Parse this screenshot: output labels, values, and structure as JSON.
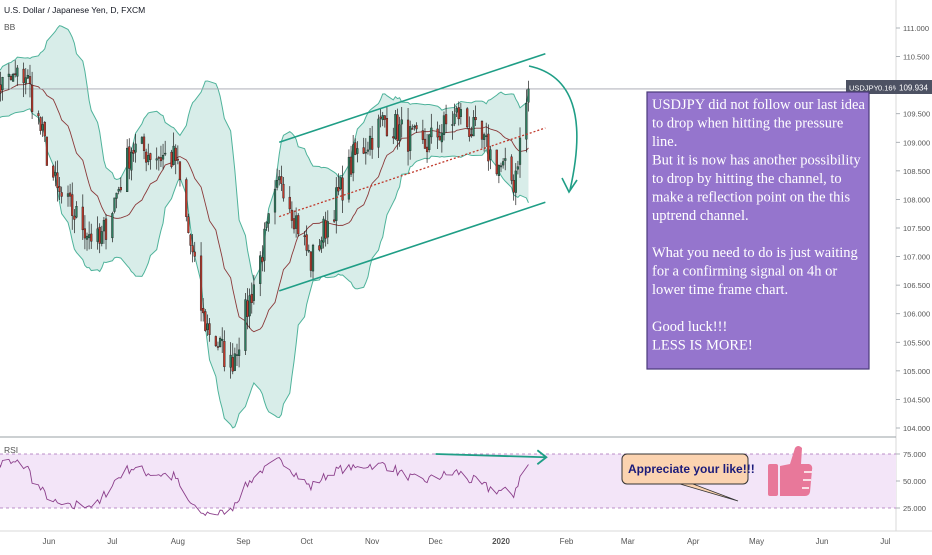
{
  "header": {
    "symbol_title": "U.S. Dollar / Japanese Yen, D, FXCM",
    "indicator_bb": "BB",
    "indicator_rsi": "RSI"
  },
  "price_badge": {
    "symbol": "USDJPY",
    "change": "0.16%",
    "price": "109.934"
  },
  "note": {
    "lines": [
      "USDJPY did not follow our last idea",
      "to drop when hitting the pressure",
      "line.",
      "But it is now has another possibility",
      "to drop by hitting the channel, to",
      "make a reflection point on the this",
      "uptrend channel.",
      "",
      "What you need to do is just waiting",
      "for a confirming signal on 4h or",
      "lower time frame chart.",
      "",
      "Good luck!!!",
      "LESS IS MORE!"
    ]
  },
  "callout": {
    "text": "Appreciate your like!!!"
  },
  "colors": {
    "up": "#2e7d5f",
    "down": "#c0392b",
    "band_fill": "#d8ede9",
    "band_line": "#4fb39b",
    "basis": "#8b3a3a",
    "channel": "#1f9e86",
    "rsi_line": "#8b3f8b",
    "rsi_fill": "#f3e5f8",
    "note_bg": "#9575cd",
    "callout_bg": "#fbd3b0",
    "thumb": "#e8789a"
  },
  "chart_data": [
    {
      "type": "candlestick",
      "title": "U.S. Dollar / Japanese Yen, D, FXCM",
      "y_ticks": [
        "111.000",
        "110.500",
        "110.000",
        "109.500",
        "109.000",
        "108.500",
        "108.000",
        "107.500",
        "107.000",
        "106.500",
        "106.000",
        "105.500",
        "105.000",
        "104.500",
        "104.000"
      ],
      "ylim": [
        103.75,
        111.35
      ],
      "x_ticks": [
        "Jun",
        "Jul",
        "Aug",
        "Sep",
        "Oct",
        "Nov",
        "Dec",
        "2020",
        "Feb",
        "Mar",
        "Apr",
        "May",
        "Jun",
        "Jul"
      ],
      "last_price": 109.934,
      "anchors": [
        {
          "date": "2019-05-01",
          "close": 109.8
        },
        {
          "date": "2019-05-10",
          "close": 110.0
        },
        {
          "date": "2019-05-21",
          "close": 110.2
        },
        {
          "date": "2019-06-05",
          "close": 108.1
        },
        {
          "date": "2019-06-25",
          "close": 107.2
        },
        {
          "date": "2019-07-10",
          "close": 108.9
        },
        {
          "date": "2019-07-31",
          "close": 108.7
        },
        {
          "date": "2019-08-13",
          "close": 105.9
        },
        {
          "date": "2019-08-26",
          "close": 105.1
        },
        {
          "date": "2019-09-03",
          "close": 106.1
        },
        {
          "date": "2019-09-19",
          "close": 108.4
        },
        {
          "date": "2019-10-03",
          "close": 106.9
        },
        {
          "date": "2019-10-23",
          "close": 108.7
        },
        {
          "date": "2019-11-07",
          "close": 109.4
        },
        {
          "date": "2019-11-25",
          "close": 108.9
        },
        {
          "date": "2019-12-12",
          "close": 109.5
        },
        {
          "date": "2019-12-31",
          "close": 108.6
        },
        {
          "date": "2020-01-07",
          "close": 108.3
        },
        {
          "date": "2020-01-14",
          "close": 109.9
        }
      ],
      "bollinger_bands": {
        "period": 20,
        "mult": 2
      },
      "channel_upper": [
        {
          "date": "2019-09-18",
          "value": 109.0
        },
        {
          "date": "2020-01-22",
          "value": 110.55
        }
      ],
      "channel_lower": [
        {
          "date": "2019-09-18",
          "value": 106.4
        },
        {
          "date": "2020-01-22",
          "value": 107.95
        }
      ],
      "channel_mid": [
        {
          "date": "2019-09-18",
          "value": 107.7
        },
        {
          "date": "2020-01-22",
          "value": 109.25
        }
      ]
    },
    {
      "type": "line",
      "title": "RSI",
      "y_ticks": [
        "75.000",
        "50.000",
        "25.000"
      ],
      "ylim": [
        10,
        90
      ],
      "band": [
        30,
        70
      ],
      "divergence_line": [
        {
          "date": "2019-12-01",
          "value": 75
        },
        {
          "date": "2020-01-22",
          "value": 72
        }
      ]
    }
  ]
}
